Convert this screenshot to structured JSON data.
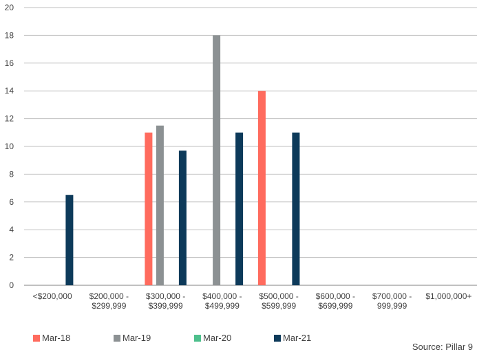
{
  "chart_data": {
    "type": "bar",
    "categories": [
      [
        "<$200,000"
      ],
      [
        "$200,000 -",
        "$299,999"
      ],
      [
        "$300,000 -",
        "$399,999"
      ],
      [
        "$400,000 -",
        "$499,999"
      ],
      [
        "$500,000 -",
        "$599,999"
      ],
      [
        "$600,000 -",
        "$699,999"
      ],
      [
        "$700,000 -",
        "999,999"
      ],
      [
        "$1,000,000+"
      ]
    ],
    "series": [
      {
        "name": "Mar-18",
        "color": "#FF6B5E",
        "values": [
          0,
          0,
          11,
          0,
          14,
          0,
          0,
          0
        ]
      },
      {
        "name": "Mar-19",
        "color": "#8C9193",
        "values": [
          0,
          0,
          11.5,
          18,
          0,
          0,
          0,
          0
        ]
      },
      {
        "name": "Mar-20",
        "color": "#4DBF8C",
        "values": [
          0,
          0,
          0,
          0,
          0,
          0,
          0,
          0
        ]
      },
      {
        "name": "Mar-21",
        "color": "#0D3A5A",
        "values": [
          6.5,
          0,
          9.7,
          11,
          11,
          0,
          0,
          0
        ]
      }
    ],
    "yticks": [
      "0",
      "2",
      "4",
      "6",
      "8",
      "10",
      "12",
      "14",
      "16",
      "18",
      "20"
    ],
    "ylim": [
      0,
      20
    ],
    "grid": true,
    "legend_position": "bottom"
  },
  "source_text": "Source: Pillar 9"
}
